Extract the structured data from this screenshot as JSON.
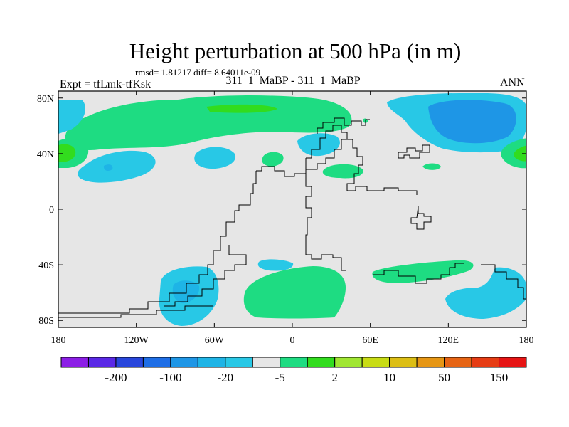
{
  "chart_data": {
    "type": "heatmap",
    "title": "Height perturbation at 500 hPa (in m)",
    "stats_line": "rmsd= 1.81217 diff= 8.64011e-09",
    "left_label": "Expt = tfLmk-tfKsk",
    "center_label": "311_1_MaBP - 311_1_MaBP",
    "right_label": "ANN",
    "x_range": [
      -180,
      180
    ],
    "y_range": [
      -85,
      85
    ],
    "x_ticks": [
      {
        "value": -180,
        "label": "180"
      },
      {
        "value": -120,
        "label": "120W"
      },
      {
        "value": -60,
        "label": "60W"
      },
      {
        "value": 0,
        "label": "0"
      },
      {
        "value": 60,
        "label": "60E"
      },
      {
        "value": 120,
        "label": "120E"
      },
      {
        "value": 180,
        "label": "180"
      }
    ],
    "y_ticks": [
      {
        "value": 80,
        "label": "80N"
      },
      {
        "value": 40,
        "label": "40N"
      },
      {
        "value": 0,
        "label": "0"
      },
      {
        "value": -40,
        "label": "40S"
      },
      {
        "value": -80,
        "label": "80S"
      }
    ],
    "colorbar": {
      "colors": [
        "#8c1ee6",
        "#5a28e6",
        "#2846dc",
        "#1e6ee6",
        "#1e96e6",
        "#1eb4e6",
        "#28c8e6",
        "#e6e6e6",
        "#1edc82",
        "#32dc1e",
        "#a0e632",
        "#c8dc14",
        "#dcbe14",
        "#e69614",
        "#e66414",
        "#e63c14",
        "#e61414"
      ],
      "labels": [
        {
          "after_box": 1,
          "label": "-200"
        },
        {
          "after_box": 3,
          "label": "-100"
        },
        {
          "after_box": 5,
          "label": "-20"
        },
        {
          "after_box": 7,
          "label": "-5"
        },
        {
          "after_box": 9,
          "label": "2"
        },
        {
          "after_box": 11,
          "label": "10"
        },
        {
          "after_box": 13,
          "label": "50"
        },
        {
          "after_box": 15,
          "label": "150"
        }
      ]
    },
    "colors": {
      "background_field": "#e6e6e6",
      "positive_light": "#1edc82",
      "positive_strong": "#32dc1e",
      "negative_light": "#28c8e6",
      "negative_mid": "#1eb4e6",
      "negative_strong": "#1e96e6"
    }
  }
}
